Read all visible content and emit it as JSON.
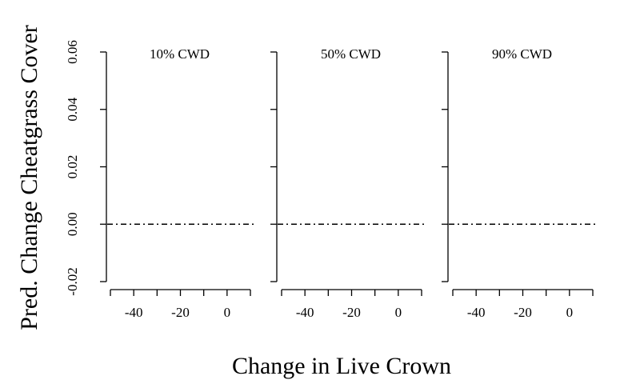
{
  "chart_data": {
    "type": "line",
    "xlabel": "Change in Live Crown",
    "ylabel": "Pred. Change Cheatgrass Cover",
    "ylim": [
      -0.02,
      0.06
    ],
    "y_ticks": [
      -0.02,
      0.0,
      0.02,
      0.04,
      0.06
    ],
    "y_tick_labels": [
      "-0.02",
      "0.00",
      "0.02",
      "0.04",
      "0.06"
    ],
    "xlim": [
      -50,
      10
    ],
    "x_tick_labels": [
      "-40",
      "-20",
      "0"
    ],
    "reference_line": {
      "y": 0,
      "style": "dashdot"
    },
    "panels": [
      {
        "title": "10% CWD",
        "x_ticks": [
          -50,
          -40,
          -30,
          -20,
          -10,
          0,
          10
        ]
      },
      {
        "title": "50% CWD",
        "x_ticks": [
          -50,
          -40,
          -30,
          -20,
          -10,
          0,
          10
        ]
      },
      {
        "title": "90% CWD",
        "x_ticks": [
          -50,
          -40,
          -30,
          -20,
          -10,
          0,
          10
        ]
      }
    ]
  }
}
